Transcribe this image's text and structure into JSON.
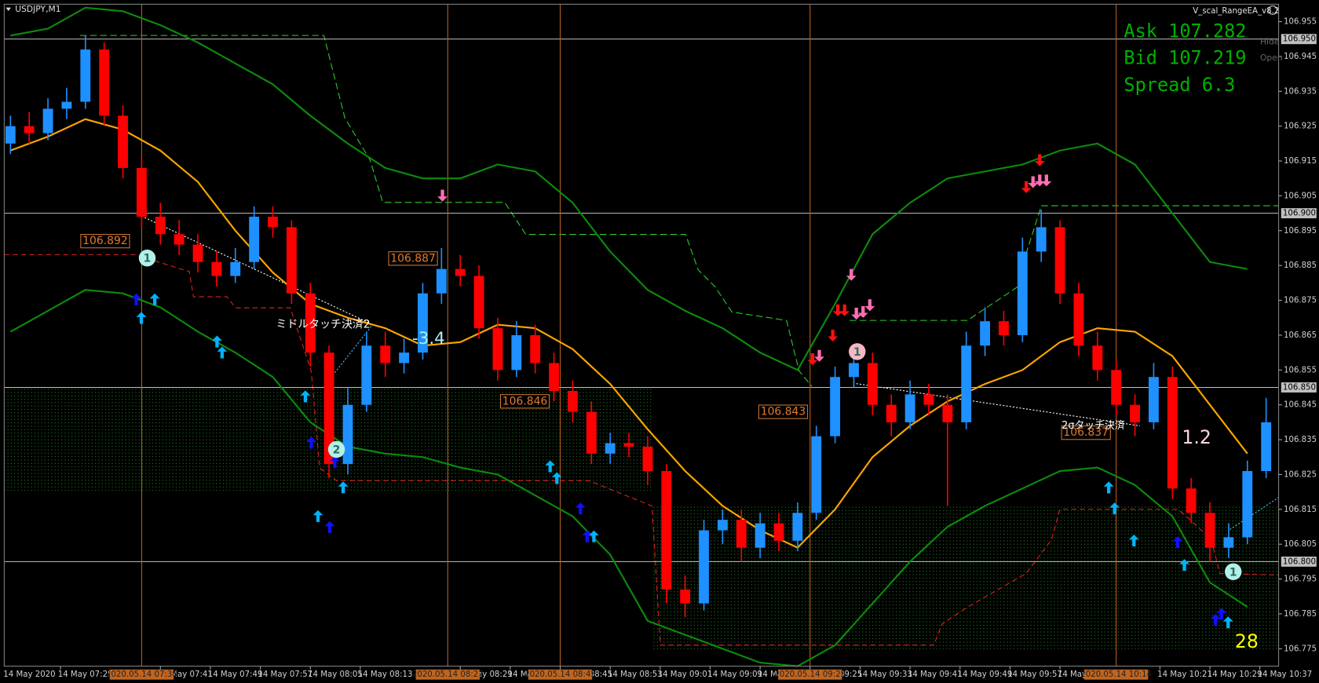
{
  "chart_data": {
    "type": "candlestick",
    "title": "USDJPY,M1",
    "ea_name": "V_scal_RangeEA_v8.2",
    "quote": [
      "Ask 107.282",
      "Bid 107.219",
      "Spread 6.3"
    ],
    "panel_buttons": [
      "Hide",
      "Open"
    ],
    "date_label": "14 May 2020",
    "xlim": [
      "07:16",
      "10:40"
    ],
    "ylim": [
      106.77,
      106.96
    ],
    "yticks": [
      106.955,
      106.945,
      106.935,
      106.925,
      106.915,
      106.905,
      106.895,
      106.885,
      106.875,
      106.865,
      106.855,
      106.845,
      106.835,
      106.825,
      106.815,
      106.805,
      106.795,
      106.785,
      106.775
    ],
    "hlines": [
      {
        "value": 106.95,
        "label": "106.950"
      },
      {
        "value": 106.9,
        "label": "106.900"
      },
      {
        "value": 106.85,
        "label": "106.850"
      },
      {
        "value": 106.8,
        "label": "106.800"
      }
    ],
    "xticks": [
      {
        "value": "07:25",
        "label": "14 May 07:25"
      },
      {
        "value": "07:41",
        "label": "14 May 07:41"
      },
      {
        "value": "07:49",
        "label": "14 May 07:49"
      },
      {
        "value": "07:57",
        "label": "14 May 07:57"
      },
      {
        "value": "08:05",
        "label": "14 May 08:05"
      },
      {
        "value": "08:13",
        "label": "14 May 08:13"
      },
      {
        "value": "08:29",
        "label": "14 May 08:29"
      },
      {
        "value": "08:37",
        "label": "14 May 08:37"
      },
      {
        "value": "08:45",
        "label": "14 May 08:45"
      },
      {
        "value": "08:53",
        "label": "14 May 08:53"
      },
      {
        "value": "09:01",
        "label": "14 May 09:01"
      },
      {
        "value": "09:09",
        "label": "14 May 09:09"
      },
      {
        "value": "09:17",
        "label": "14 May 09:17"
      },
      {
        "value": "09:25",
        "label": "14 May 09:25"
      },
      {
        "value": "09:33",
        "label": "14 May 09:33"
      },
      {
        "value": "09:41",
        "label": "14 May 09:41"
      },
      {
        "value": "09:49",
        "label": "14 May 09:49"
      },
      {
        "value": "09:57",
        "label": "14 May 09:57"
      },
      {
        "value": "10:05",
        "label": "14 May 10:05"
      },
      {
        "value": "10:21",
        "label": "14 May 10:21"
      },
      {
        "value": "10:29",
        "label": "14 May 10:29"
      },
      {
        "value": "10:37",
        "label": "14 May 10:37"
      }
    ],
    "vlines": [
      {
        "value": "07:38",
        "label": "2020.05.14 07:38"
      },
      {
        "value": "08:27",
        "label": "2020.05.14 08:27"
      },
      {
        "value": "08:45",
        "label": "2020.05.14 08:45"
      },
      {
        "value": "09:25",
        "label": "2020.05.14 09:25"
      },
      {
        "value": "10:14",
        "label": "2020.05.14 10:14"
      }
    ],
    "up_color": "#1e90ff",
    "down_color": "#ff0000",
    "candles": {
      "x": [
        "07:17",
        "07:20",
        "07:23",
        "07:26",
        "07:29",
        "07:32",
        "07:35",
        "07:38",
        "07:41",
        "07:44",
        "07:47",
        "07:50",
        "07:53",
        "07:56",
        "07:59",
        "08:02",
        "08:05",
        "08:08",
        "08:11",
        "08:14",
        "08:17",
        "08:20",
        "08:23",
        "08:26",
        "08:29",
        "08:32",
        "08:35",
        "08:38",
        "08:41",
        "08:44",
        "08:47",
        "08:50",
        "08:53",
        "08:56",
        "08:59",
        "09:02",
        "09:05",
        "09:08",
        "09:11",
        "09:14",
        "09:17",
        "09:20",
        "09:23",
        "09:26",
        "09:29",
        "09:32",
        "09:35",
        "09:38",
        "09:41",
        "09:44",
        "09:47",
        "09:50",
        "09:53",
        "09:56",
        "09:59",
        "10:02",
        "10:05",
        "10:08",
        "10:11",
        "10:14",
        "10:17",
        "10:20",
        "10:23",
        "10:26",
        "10:29",
        "10:32",
        "10:35",
        "10:38"
      ],
      "open": [
        106.92,
        106.925,
        106.923,
        106.93,
        106.932,
        106.947,
        106.928,
        106.913,
        106.899,
        106.894,
        106.891,
        106.886,
        106.882,
        106.886,
        106.899,
        106.896,
        106.877,
        106.86,
        106.828,
        106.845,
        106.862,
        106.857,
        106.86,
        106.877,
        106.884,
        106.882,
        106.867,
        106.855,
        106.865,
        106.857,
        106.849,
        106.843,
        106.831,
        106.834,
        106.833,
        106.826,
        106.792,
        106.788,
        106.809,
        106.812,
        106.804,
        106.811,
        106.806,
        106.814,
        106.836,
        106.853,
        106.857,
        106.845,
        106.84,
        106.848,
        106.845,
        106.84,
        106.862,
        106.869,
        106.865,
        106.889,
        106.896,
        106.877,
        106.862,
        106.855,
        106.845,
        106.84,
        106.853,
        106.821,
        106.814,
        106.804,
        106.807,
        106.826
      ],
      "high": [
        106.928,
        106.929,
        106.933,
        106.936,
        106.951,
        106.949,
        106.931,
        106.916,
        106.903,
        106.898,
        106.894,
        106.889,
        106.89,
        106.902,
        106.902,
        106.898,
        106.88,
        106.862,
        106.85,
        106.866,
        106.866,
        106.864,
        106.88,
        106.89,
        106.888,
        106.885,
        106.87,
        106.869,
        106.868,
        106.86,
        106.852,
        106.846,
        106.837,
        106.837,
        106.836,
        106.828,
        106.796,
        106.812,
        106.815,
        106.815,
        106.814,
        106.814,
        106.817,
        106.839,
        106.856,
        106.861,
        106.86,
        106.848,
        106.852,
        106.851,
        106.848,
        106.866,
        106.873,
        106.872,
        106.893,
        106.901,
        106.898,
        106.88,
        106.866,
        106.858,
        106.848,
        106.857,
        106.856,
        106.824,
        106.817,
        106.811,
        106.829,
        106.847
      ],
      "low": [
        106.917,
        106.92,
        106.921,
        106.927,
        106.93,
        106.925,
        106.91,
        106.896,
        106.891,
        106.888,
        106.883,
        106.879,
        106.88,
        106.884,
        106.893,
        106.874,
        106.856,
        106.824,
        106.825,
        106.843,
        106.853,
        106.854,
        106.858,
        106.874,
        106.879,
        106.864,
        106.852,
        106.853,
        106.854,
        106.846,
        106.84,
        106.828,
        106.828,
        106.83,
        106.822,
        106.788,
        106.784,
        106.786,
        106.805,
        106.8,
        106.801,
        106.803,
        106.803,
        106.812,
        106.834,
        106.85,
        106.842,
        106.836,
        106.838,
        106.842,
        106.816,
        106.838,
        106.859,
        106.862,
        106.863,
        106.886,
        106.874,
        106.859,
        106.852,
        106.842,
        106.836,
        106.838,
        106.818,
        106.811,
        106.8,
        106.801,
        106.805,
        106.824
      ],
      "close": [
        106.925,
        106.923,
        106.93,
        106.932,
        106.947,
        106.928,
        106.913,
        106.899,
        106.894,
        106.891,
        106.886,
        106.882,
        106.886,
        106.899,
        106.896,
        106.877,
        106.86,
        106.828,
        106.845,
        106.862,
        106.857,
        106.86,
        106.877,
        106.884,
        106.882,
        106.867,
        106.855,
        106.865,
        106.857,
        106.849,
        106.843,
        106.831,
        106.834,
        106.833,
        106.826,
        106.792,
        106.788,
        106.809,
        106.812,
        106.804,
        106.811,
        106.806,
        106.814,
        106.836,
        106.853,
        106.857,
        106.845,
        106.84,
        106.848,
        106.845,
        106.84,
        106.862,
        106.869,
        106.865,
        106.889,
        106.896,
        106.877,
        106.862,
        106.855,
        106.845,
        106.84,
        106.853,
        106.821,
        106.814,
        106.804,
        106.807,
        106.826,
        106.84
      ]
    },
    "indicators": {
      "x": [
        "07:17",
        "07:23",
        "07:29",
        "07:35",
        "07:41",
        "07:47",
        "07:53",
        "07:59",
        "08:05",
        "08:11",
        "08:17",
        "08:23",
        "08:29",
        "08:35",
        "08:41",
        "08:47",
        "08:53",
        "08:59",
        "09:05",
        "09:11",
        "09:17",
        "09:23",
        "09:29",
        "09:35",
        "09:41",
        "09:47",
        "09:53",
        "09:59",
        "10:05",
        "10:11",
        "10:17",
        "10:23",
        "10:29",
        "10:35"
      ],
      "series": [
        {
          "color": "#ffa500",
          "values": [
            106.918,
            106.922,
            106.927,
            106.924,
            106.918,
            106.909,
            106.895,
            106.883,
            106.874,
            106.87,
            106.867,
            106.862,
            106.863,
            106.868,
            106.867,
            106.861,
            106.851,
            106.838,
            106.826,
            106.816,
            106.809,
            106.804,
            106.815,
            106.83,
            106.839,
            106.846,
            106.851,
            106.855,
            106.863,
            106.867,
            106.866,
            106.859,
            106.845,
            106.831
          ]
        },
        {
          "color": "#0c8a0c",
          "values": [
            106.951,
            106.953,
            106.959,
            106.958,
            106.954,
            106.949,
            106.943,
            106.937,
            106.928,
            106.92,
            106.913,
            106.91,
            106.91,
            106.914,
            106.912,
            106.903,
            106.889,
            106.878,
            106.872,
            106.867,
            106.86,
            106.855,
            106.874,
            106.894,
            106.903,
            106.91,
            106.912,
            106.914,
            106.918,
            106.92,
            106.914,
            106.9,
            106.886,
            106.884
          ]
        },
        {
          "color": "#0c8a0c",
          "values": [
            106.866,
            106.872,
            106.878,
            106.877,
            106.873,
            106.866,
            106.86,
            106.853,
            106.84,
            106.833,
            106.831,
            106.83,
            106.827,
            106.825,
            106.819,
            106.813,
            106.802,
            106.783,
            106.779,
            106.775,
            106.771,
            106.77,
            106.776,
            106.788,
            106.8,
            106.81,
            106.816,
            106.821,
            106.826,
            106.827,
            106.822,
            106.813,
            106.794,
            106.787
          ]
        }
      ]
    },
    "price_labels": [
      106.892,
      106.887,
      106.846,
      106.843,
      106.837
    ],
    "annotations": [
      "ミドルタッチ決済2",
      "-3.4",
      "2σタッチ決済",
      "1.2",
      "28"
    ],
    "markers": [
      "1",
      "2",
      "1",
      "1"
    ]
  }
}
